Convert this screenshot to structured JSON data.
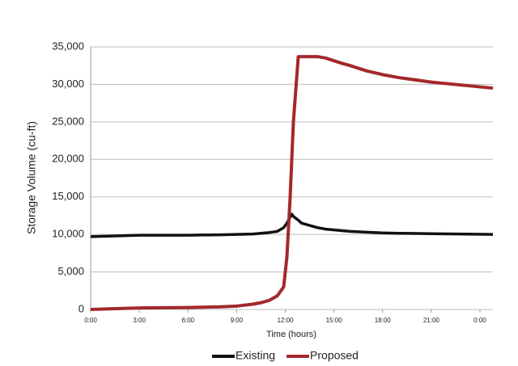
{
  "chart_data": {
    "type": "line",
    "y_label": "Storage Volume (cu-ft)",
    "x_label": "Time (hours)",
    "x": [
      0,
      3,
      6,
      8,
      9,
      10,
      10.5,
      11,
      11.5,
      11.9,
      12.1,
      12.3,
      12.4,
      12.5,
      12.8,
      13,
      14,
      14.5,
      15.5,
      16,
      17,
      18,
      19,
      21,
      24.8
    ],
    "series": [
      {
        "name": "Existing",
        "color": "#111111",
        "values": [
          9700,
          9900,
          9900,
          9950,
          10000,
          10050,
          10150,
          10250,
          10400,
          10900,
          11500,
          12300,
          12700,
          12400,
          11900,
          11500,
          10900,
          10700,
          10500,
          10400,
          10300,
          10200,
          10150,
          10100,
          10000
        ]
      },
      {
        "name": "Proposed",
        "color": "#a3282b",
        "values": [
          0,
          200,
          250,
          350,
          450,
          700,
          900,
          1200,
          1800,
          3000,
          7000,
          15000,
          20000,
          25000,
          33700,
          33700,
          33700,
          33500,
          32800,
          32500,
          31800,
          31300,
          30900,
          30300,
          29500
        ]
      }
    ],
    "xlim": [
      0,
      24.8
    ],
    "xticks": [
      {
        "value": 0,
        "label": "0:00"
      },
      {
        "value": 3,
        "label": "3:00"
      },
      {
        "value": 6,
        "label": "6:00"
      },
      {
        "value": 9,
        "label": "9:00"
      },
      {
        "value": 12,
        "label": "12:00"
      },
      {
        "value": 15,
        "label": "15:00"
      },
      {
        "value": 18,
        "label": "18:00"
      },
      {
        "value": 21,
        "label": "21:00"
      },
      {
        "value": 24,
        "label": "0:00"
      }
    ],
    "ylim": [
      0,
      35000
    ],
    "yticks": [
      0,
      {
        "value": 5000,
        "label": "5,000"
      },
      {
        "value": 10000,
        "label": "10,000"
      },
      {
        "value": 15000,
        "label": "15,000"
      },
      {
        "value": 20000,
        "label": "20,000"
      },
      {
        "value": 25000,
        "label": "25,000"
      },
      {
        "value": 30000,
        "label": "30,000"
      },
      {
        "value": 35000,
        "label": "35,000"
      }
    ],
    "grid": true,
    "legend": "bottom"
  }
}
